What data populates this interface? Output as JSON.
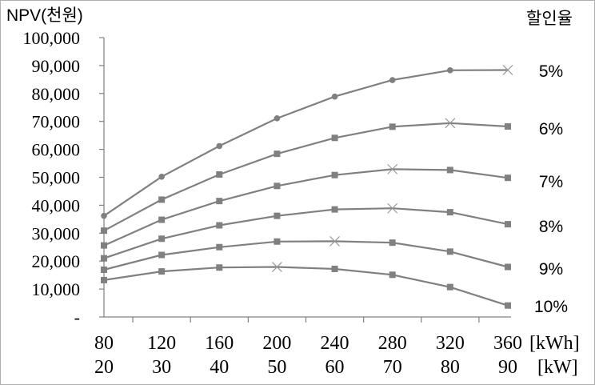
{
  "chart_data": {
    "type": "line",
    "ylabel": "NPV(천원)",
    "legend_title": "할인율",
    "ylim": [
      0,
      100000
    ],
    "y_ticks": [
      0,
      10000,
      20000,
      30000,
      40000,
      50000,
      60000,
      70000,
      80000,
      90000,
      100000
    ],
    "y_tick_labels": [
      "-",
      "10,000",
      "20,000",
      "30,000",
      "40,000",
      "50,000",
      "60,000",
      "70,000",
      "80,000",
      "90,000",
      "100,000"
    ],
    "x_kwh": [
      "80",
      "120",
      "160",
      "200",
      "240",
      "280",
      "320",
      "360"
    ],
    "x_kw": [
      "20",
      "30",
      "40",
      "50",
      "60",
      "70",
      "80",
      "90"
    ],
    "x_unit_kwh": "[kWh]",
    "x_unit_kw": "[kW]",
    "grid": false,
    "legend": "right, labels at line ends",
    "line_color": "#808080",
    "series": [
      {
        "name": "5%",
        "values": [
          36200,
          50200,
          61200,
          71100,
          78900,
          84800,
          88300,
          88400
        ],
        "max_index": 7,
        "markers": "circle"
      },
      {
        "name": "6%",
        "values": [
          30900,
          42000,
          51000,
          58400,
          64100,
          68100,
          69400,
          68200
        ],
        "max_index": 6,
        "markers": "square"
      },
      {
        "name": "7%",
        "values": [
          25600,
          34800,
          41500,
          46900,
          50800,
          52900,
          52600,
          49800
        ],
        "max_index": 5,
        "markers": "square"
      },
      {
        "name": "8%",
        "values": [
          21000,
          28000,
          32800,
          36200,
          38500,
          38900,
          37500,
          33200
        ],
        "max_index": 5,
        "markers": "square"
      },
      {
        "name": "9%",
        "values": [
          16900,
          22200,
          25000,
          27000,
          27100,
          26600,
          23400,
          17900
        ],
        "max_index": 4,
        "markers": "square"
      },
      {
        "name": "10%",
        "values": [
          13200,
          16300,
          17700,
          17900,
          17200,
          15100,
          10700,
          4100
        ],
        "max_index": 3,
        "markers": "square"
      }
    ]
  }
}
